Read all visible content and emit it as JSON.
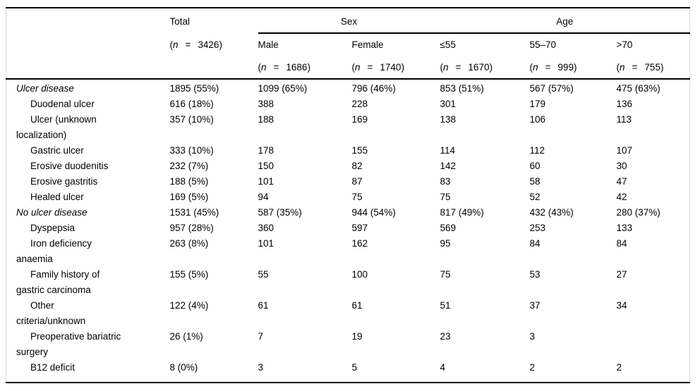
{
  "table": {
    "n_format": {
      "open": "(",
      "var": "n",
      "eq": "=",
      "close": ")"
    },
    "total": {
      "label": "Total",
      "n": "3426"
    },
    "groups": [
      {
        "label": "Sex",
        "columns": [
          {
            "label": "Male",
            "n": "1686"
          },
          {
            "label": "Female",
            "n": "1740"
          }
        ]
      },
      {
        "label": "Age",
        "columns": [
          {
            "label": "≤55",
            "n": "1670"
          },
          {
            "label": "55–70",
            "n": "999"
          },
          {
            "label": ">70",
            "n": "755"
          }
        ]
      }
    ],
    "rows": [
      {
        "style": "section",
        "lines": [
          "Ulcer disease"
        ],
        "values": [
          "1895 (55%)",
          "1099 (65%)",
          "796 (46%)",
          "853 (51%)",
          "567 (57%)",
          "475 (63%)"
        ]
      },
      {
        "style": "sub",
        "lines": [
          "Duodenal ulcer"
        ],
        "values": [
          "616 (18%)",
          "388",
          "228",
          "301",
          "179",
          "136"
        ]
      },
      {
        "style": "sub",
        "lines": [
          "Ulcer (unknown",
          "localization)"
        ],
        "values": [
          "357 (10%)",
          "188",
          "169",
          "138",
          "106",
          "113"
        ]
      },
      {
        "style": "sub",
        "lines": [
          "Gastric ulcer"
        ],
        "values": [
          "333 (10%)",
          "178",
          "155",
          "114",
          "112",
          "107"
        ]
      },
      {
        "style": "sub",
        "lines": [
          "Erosive duodenitis"
        ],
        "values": [
          "232 (7%)",
          "150",
          "82",
          "142",
          "60",
          "30"
        ]
      },
      {
        "style": "sub",
        "lines": [
          "Erosive gastritis"
        ],
        "values": [
          "188 (5%)",
          "101",
          "87",
          "83",
          "58",
          "47"
        ]
      },
      {
        "style": "sub",
        "lines": [
          "Healed ulcer"
        ],
        "values": [
          "169 (5%)",
          "94",
          "75",
          "75",
          "52",
          "42"
        ]
      },
      {
        "style": "section",
        "lines": [
          "No ulcer disease"
        ],
        "values": [
          "1531 (45%)",
          "587 (35%)",
          "944 (54%)",
          "817 (49%)",
          "432 (43%)",
          "280 (37%)"
        ]
      },
      {
        "style": "sub",
        "lines": [
          "Dyspepsia"
        ],
        "values": [
          "957 (28%)",
          "360",
          "597",
          "569",
          "253",
          "133"
        ]
      },
      {
        "style": "sub",
        "lines": [
          "Iron deficiency",
          "anaemia"
        ],
        "values": [
          "263 (8%)",
          "101",
          "162",
          "95",
          "84",
          "84"
        ]
      },
      {
        "style": "sub",
        "lines": [
          "Family history of",
          "gastric carcinoma"
        ],
        "values": [
          "155 (5%)",
          "55",
          "100",
          "75",
          "53",
          "27"
        ]
      },
      {
        "style": "sub",
        "lines": [
          "Other",
          "criteria/unknown"
        ],
        "values": [
          "122 (4%)",
          "61",
          "61",
          "51",
          "37",
          "34"
        ]
      },
      {
        "style": "sub",
        "lines": [
          "Preoperative bariatric",
          "surgery"
        ],
        "values": [
          "26 (1%)",
          "7",
          "19",
          "23",
          "3",
          ""
        ]
      },
      {
        "style": "sub",
        "lines": [
          "B12 deficit"
        ],
        "values": [
          "8 (0%)",
          "3",
          "5",
          "4",
          "2",
          "2"
        ]
      }
    ]
  }
}
